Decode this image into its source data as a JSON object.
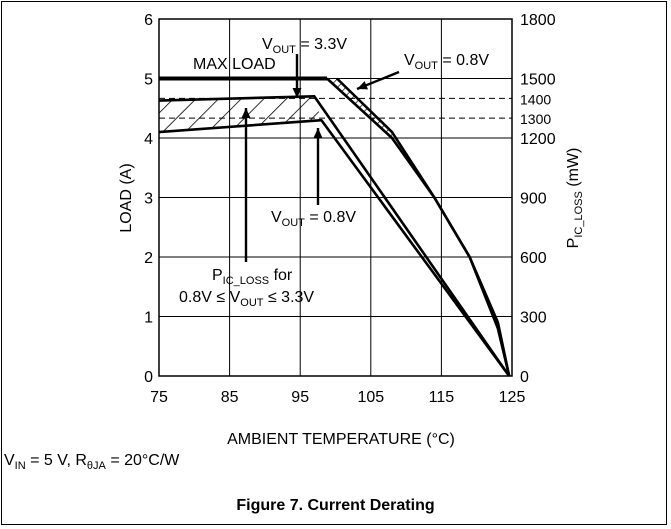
{
  "chart_data": {
    "type": "line",
    "xlabel": "AMBIENT TEMPERATURE (°C)",
    "ylabel": "LOAD (A)",
    "ylabel_right": "P_IC_LOSS (mW)",
    "xlim": [
      75,
      125
    ],
    "ylim": [
      0,
      6
    ],
    "y2lim": [
      0,
      1800
    ],
    "x_ticks": [
      "75",
      "85",
      "95",
      "105",
      "115",
      "125"
    ],
    "y_ticks": [
      "0",
      "1",
      "2",
      "3",
      "4",
      "5",
      "6"
    ],
    "y2_ticks": [
      "0",
      "300",
      "600",
      "900",
      "1200",
      "1300",
      "1400",
      "1500",
      "1800"
    ],
    "series": [
      {
        "name": "MAX LOAD",
        "x": [
          75,
          98.8
        ],
        "y": [
          5.0,
          5.0
        ]
      },
      {
        "name": "V_OUT = 3.3V",
        "x": [
          98.8,
          108,
          114,
          119,
          123,
          124.6
        ],
        "y": [
          5.0,
          4.0,
          3.0,
          2.0,
          0.8,
          0.0
        ]
      },
      {
        "name": "V_OUT = 0.8V",
        "x": [
          100.2,
          108,
          114,
          119,
          123,
          124.6
        ],
        "y": [
          5.0,
          4.1,
          3.0,
          2.0,
          0.9,
          0.0
        ]
      },
      {
        "name": "P_IC_LOSS upper (3.3V)",
        "x": [
          75,
          97,
          124.6
        ],
        "y": [
          4.63,
          4.7,
          0.0
        ]
      },
      {
        "name": "P_IC_LOSS lower (0.8V)",
        "x": [
          75,
          98,
          124.6
        ],
        "y": [
          4.1,
          4.3,
          0.0
        ]
      }
    ],
    "reference_lines_mW": [
      1300,
      1400
    ],
    "grid": true,
    "annotations": [
      "MAX LOAD",
      "V_OUT = 3.3V",
      "V_OUT = 0.8V",
      "V_OUT = 0.8V",
      "P_IC_LOSS for 0.8V ≤ V_OUT ≤ 3.3V"
    ],
    "colors": {
      "line": "#000000",
      "grid": "#000000",
      "background": "#ffffff"
    }
  },
  "labels": {
    "max_load": "MAX LOAD",
    "v": "V",
    "out": "OUT",
    "eq33": " = 3.3V",
    "eq08": " = 0.8V",
    "p": "P",
    "ic_loss": "IC_LOSS",
    "for": " for",
    "range_a": "0.8V ≤ V",
    "range_b": " ≤ 3.3V",
    "ylabel_right_p": "P",
    "ylabel_right_sub": "IC_LOSS",
    "ylabel_right_unit": " (mW)"
  },
  "condition": {
    "v": "V",
    "in": "IN",
    "eq": " = 5 V, R",
    "theta": "θJA",
    "rest": " = 20°C/W"
  },
  "caption": "Figure 7. Current Derating"
}
